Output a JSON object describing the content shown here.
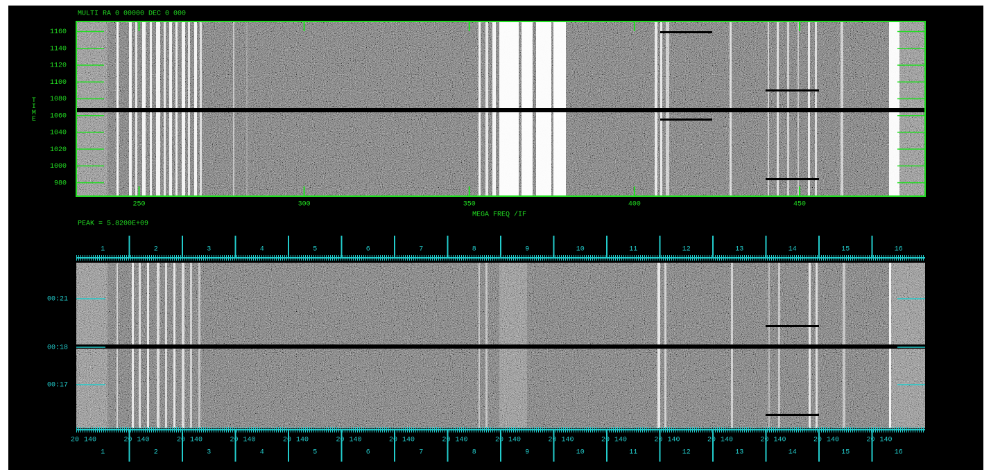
{
  "top_panel": {
    "header": "MULTI RA 0 00000  DEC 0 000",
    "ylabel": "TIME",
    "xlabel": "MEGA FREQ /IF",
    "xlim": [
      231,
      488
    ],
    "xticks": [
      250,
      300,
      350,
      400,
      450
    ],
    "ylim": [
      964,
      1172
    ],
    "yticks": [
      980,
      1000,
      1020,
      1040,
      1060,
      1080,
      1100,
      1120,
      1140,
      1160
    ]
  },
  "peak_label": "PEAK = 5.8200E+09",
  "bottom_panel": {
    "channels": [
      "1",
      "2",
      "3",
      "4",
      "5",
      "6",
      "7",
      "8",
      "9",
      "10",
      "11",
      "12",
      "13",
      "14",
      "15",
      "16"
    ],
    "time_labels": [
      "00:21",
      "00:18",
      "00:17"
    ],
    "range_labels": [
      "20",
      "140"
    ]
  }
}
